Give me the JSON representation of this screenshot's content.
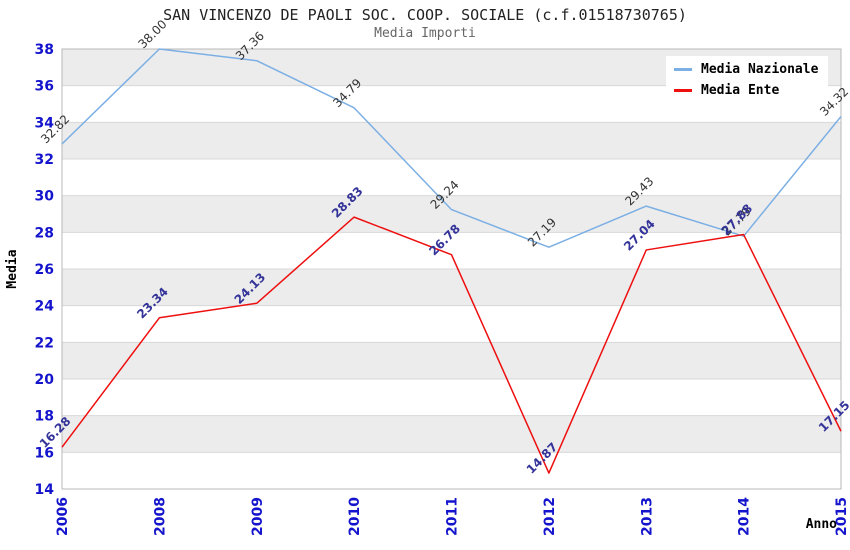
{
  "header": {
    "title": "SAN VINCENZO DE PAOLI SOC. COOP. SOCIALE (c.f.01518730765)",
    "subtitle": "Media Importi"
  },
  "legend": {
    "position": "top-right",
    "items": [
      {
        "label": "Media Nazionale",
        "color": "#7cafe4"
      },
      {
        "label": "Media Ente",
        "color": "#ee0f0f"
      }
    ]
  },
  "chart_data": {
    "type": "line",
    "title": "SAN VINCENZO DE PAOLI SOC. COOP. SOCIALE (c.f.01518730765)",
    "subtitle": "Media Importi",
    "xlabel": "Anno",
    "ylabel": "Media",
    "categories": [
      "2006",
      "2008",
      "2009",
      "2010",
      "2011",
      "2012",
      "2013",
      "2014",
      "2015"
    ],
    "series": [
      {
        "name": "Media Nazionale",
        "color": "#7cafe4",
        "label_color": "#333333",
        "label_bold": false,
        "values": [
          32.82,
          38.0,
          37.36,
          34.79,
          29.24,
          27.19,
          29.43,
          27.79,
          34.32
        ]
      },
      {
        "name": "Media Ente",
        "color": "#ee0f0f",
        "label_color": "#333399",
        "label_bold": true,
        "values": [
          16.28,
          23.34,
          24.13,
          28.83,
          26.78,
          14.87,
          27.04,
          27.88,
          17.15
        ]
      }
    ],
    "ylim": [
      14,
      38
    ],
    "ytick_step": 2,
    "yticks": [
      14,
      16,
      18,
      20,
      22,
      24,
      26,
      28,
      30,
      32,
      34,
      36,
      38
    ],
    "grid": true,
    "alternating_bands": true,
    "value_label_decimals": 2,
    "value_label_rotation": -45,
    "legend_position": "top-right",
    "colors": {
      "tick_label": "#1414cd",
      "band": "#ececec",
      "grid_line": "#d8d8d8",
      "plot_border": "#b8b8b8",
      "axis_title": "#000000",
      "background": "#ffffff"
    }
  }
}
